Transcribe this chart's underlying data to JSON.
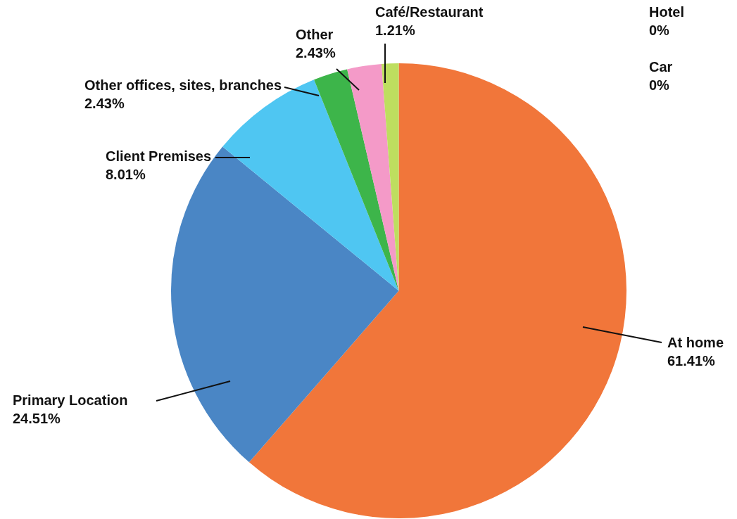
{
  "chart_data": {
    "type": "pie",
    "categories": [
      "At home",
      "Primary Location",
      "Client Premises",
      "Other offices, sites, branches",
      "Other",
      "Café/Restaurant",
      "Hotel",
      "Car"
    ],
    "values": [
      61.41,
      24.51,
      8.01,
      2.43,
      2.43,
      1.21,
      0,
      0
    ],
    "value_labels": [
      "61.41%",
      "24.51%",
      "8.01%",
      "2.43%",
      "2.43%",
      "1.21%",
      "0%",
      "0%"
    ],
    "colors": [
      "#f1763a",
      "#4a86c5",
      "#4fc6f2",
      "#3db54a",
      "#f49ac8",
      "#bede5f",
      "#9e9e9e",
      "#7f7f7f"
    ],
    "legend": false
  }
}
